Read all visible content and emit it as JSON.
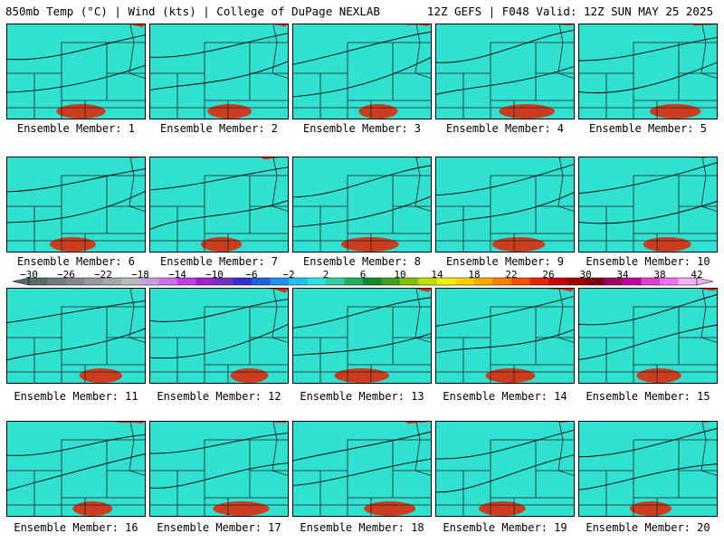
{
  "header": {
    "left": "850mb Temp (°C) | Wind (kts) | College of DuPage NEXLAB",
    "right": "12Z GEFS | F048 Valid: 12Z SUN MAY 25 2025"
  },
  "panels": [
    {
      "label": "Ensemble Member: 1"
    },
    {
      "label": "Ensemble Member: 2"
    },
    {
      "label": "Ensemble Member: 3"
    },
    {
      "label": "Ensemble Member: 4"
    },
    {
      "label": "Ensemble Member: 5"
    },
    {
      "label": "Ensemble Member: 6"
    },
    {
      "label": "Ensemble Member: 7"
    },
    {
      "label": "Ensemble Member: 8"
    },
    {
      "label": "Ensemble Member: 9"
    },
    {
      "label": "Ensemble Member: 10"
    },
    {
      "label": "Ensemble Member: 11"
    },
    {
      "label": "Ensemble Member: 12"
    },
    {
      "label": "Ensemble Member: 13"
    },
    {
      "label": "Ensemble Member: 14"
    },
    {
      "label": "Ensemble Member: 15"
    },
    {
      "label": "Ensemble Member: 16"
    },
    {
      "label": "Ensemble Member: 17"
    },
    {
      "label": "Ensemble Member: 18"
    },
    {
      "label": "Ensemble Member: 19"
    },
    {
      "label": "Ensemble Member: 20"
    }
  ],
  "colorbar": {
    "tick_labels": [
      "−30",
      "−26",
      "−22",
      "−18",
      "−14",
      "−10",
      "−6",
      "−2",
      "2",
      "6",
      "10",
      "14",
      "18",
      "22",
      "26",
      "30",
      "34",
      "38",
      "42"
    ],
    "colors": [
      "#5a6a6a",
      "#6e7c7c",
      "#808a8a",
      "#929c9c",
      "#a4aaaa",
      "#b4bcbc",
      "#c8a0e0",
      "#d070e8",
      "#c040e0",
      "#a020d0",
      "#7030c0",
      "#3030d0",
      "#2060e0",
      "#2090f0",
      "#20c0f0",
      "#30e0e0",
      "#30d0a0",
      "#20b060",
      "#108830",
      "#40a020",
      "#80c000",
      "#c0e000",
      "#f0f000",
      "#ffd000",
      "#ffa800",
      "#ff8000",
      "#f85000",
      "#e82000",
      "#c80000",
      "#a00000",
      "#800010",
      "#a00060",
      "#c000a0",
      "#e040d0",
      "#f070f0",
      "#f8b0f8"
    ]
  }
}
